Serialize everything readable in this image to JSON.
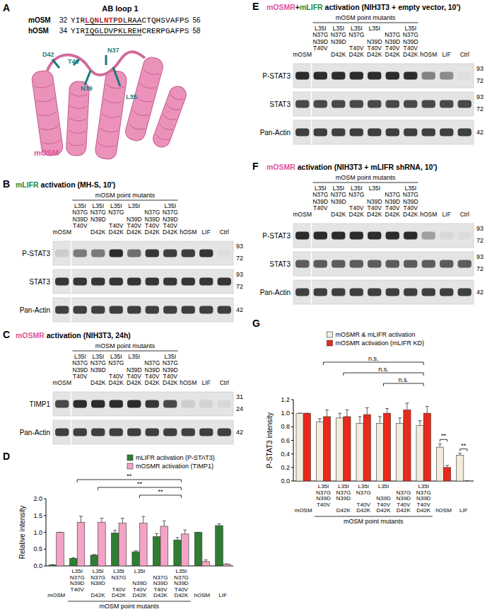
{
  "panels": {
    "A": {
      "label": "A",
      "title": "AB loop 1",
      "sequences": [
        {
          "name": "mOSM",
          "start": 32,
          "end": 56,
          "residues": "YIRLQNLNTPDLRAACTQHSVAFPS",
          "underline": [
            35,
            46
          ],
          "red": [
            35,
            37,
            39,
            40,
            42
          ]
        },
        {
          "name": "hOSM",
          "start": 34,
          "end": 58,
          "residues": "YIRIQGLDVPKLREHCRERPGAFPS",
          "underline": [
            37,
            48
          ]
        }
      ],
      "structure": {
        "name": "mOSM",
        "residues": [
          "L35",
          "N37",
          "N39",
          "T40",
          "D42"
        ]
      }
    },
    "B": {
      "label": "B",
      "title": [
        {
          "text": "mLIFR",
          "color": "#1e8a3a"
        },
        {
          "text": " activation (MH-S, 10')"
        }
      ],
      "group_label": "mOSM point mutants",
      "group_span": [
        1,
        6
      ],
      "lanes": [
        "mOSM",
        "L35I\nN37G\nN39D\nT40V",
        "L35I\nN37G\nN39D\n\nD42K",
        "L35I\nN37G\n\nT40V\nD42K",
        "L35I\n\nN39D\nT40V\nD42K",
        "\nN37G\nN39D\nT40V\nD42K",
        "L35I\nN37G\nN39D\nT40V\nD42K",
        "hOSM",
        "LIF",
        "Ctrl"
      ],
      "rows": [
        {
          "name": "P-STAT3",
          "markers": [
            93,
            72
          ],
          "bands": [
            0.12,
            0.55,
            0.55,
            0.95,
            0.6,
            0.9,
            0.85,
            0.85,
            0.9,
            0.03
          ]
        },
        {
          "name": "STAT3",
          "markers": [
            93,
            72
          ],
          "bands": [
            0.9,
            0.9,
            0.9,
            0.9,
            0.9,
            0.9,
            0.9,
            0.9,
            0.9,
            0.9
          ]
        },
        {
          "name": "Pan-Actin",
          "markers": [
            42
          ],
          "bands": [
            0.85,
            0.85,
            0.85,
            0.85,
            0.85,
            0.85,
            0.85,
            0.85,
            0.85,
            0.85
          ]
        }
      ]
    },
    "C": {
      "label": "C",
      "title": [
        {
          "text": "mOSMR",
          "color": "#e0559a"
        },
        {
          "text": " activation (NIH3T3, 24h)"
        }
      ],
      "group_label": "mOSM point mutants",
      "group_span": [
        1,
        6
      ],
      "lanes": [
        "mOSM",
        "L35I\nN37G\nN39D\nT40V",
        "L35I\nN37G\nN39D\n\nD42K",
        "L35I\nN37G\n\nT40V\nD42K",
        "L35I\n\nN39D\nT40V\nD42K",
        "\nN37G\nN39D\nT40V\nD42K",
        "L35I\nN37G\nN39D\nT40V\nD42K",
        "hOSM",
        "LIF",
        "Ctrl"
      ],
      "rows": [
        {
          "name": "TIMP1",
          "markers": [
            31,
            24
          ],
          "bands": [
            0.8,
            0.95,
            0.95,
            0.95,
            0.95,
            0.9,
            0.8,
            0.12,
            0.08,
            0.06
          ]
        },
        {
          "name": "Pan-Actin",
          "markers": [
            42
          ],
          "bands": [
            0.85,
            0.85,
            0.85,
            0.85,
            0.85,
            0.85,
            0.85,
            0.85,
            0.85,
            0.85
          ]
        }
      ]
    },
    "D": {
      "label": "D"
    },
    "E": {
      "label": "E",
      "title": [
        {
          "text": "mOSMR",
          "color": "#e0559a"
        },
        {
          "text": "+"
        },
        {
          "text": "mLIFR",
          "color": "#1e8a3a"
        },
        {
          "text": " activation (NIH3T3 + empty vector, 10')"
        }
      ],
      "group_label": "mOSM point mutants",
      "group_span": [
        1,
        6
      ],
      "lanes": [
        "mOSM",
        "L35I\nN37G\nN39D\nT40V",
        "L35I\nN37G\nN39D\n\nD42K",
        "L35I\nN37G\n\nT40V\nD42K",
        "L35I\n\nN39D\nT40V\nD42K",
        "\nN37G\nN39D\nT40V\nD42K",
        "L35I\nN37G\nN39D\nT40V\nD42K",
        "hOSM",
        "LIF",
        "Ctrl"
      ],
      "rows": [
        {
          "name": "P-STAT3",
          "markers": [
            93,
            72
          ],
          "bands": [
            0.95,
            0.95,
            0.95,
            0.95,
            0.95,
            0.95,
            0.95,
            0.5,
            0.45,
            0.02
          ]
        },
        {
          "name": "STAT3",
          "markers": [
            93,
            72
          ],
          "bands": [
            0.8,
            0.8,
            0.8,
            0.8,
            0.8,
            0.8,
            0.8,
            0.8,
            0.8,
            0.8
          ]
        },
        {
          "name": "Pan-Actin",
          "markers": [
            42
          ],
          "bands": [
            0.85,
            0.85,
            0.85,
            0.85,
            0.85,
            0.85,
            0.85,
            0.85,
            0.85,
            0.85
          ]
        }
      ]
    },
    "F": {
      "label": "F",
      "title": [
        {
          "text": "mOSMR",
          "color": "#e0559a"
        },
        {
          "text": " activation (NIH3T3 + mLIFR shRNA, 10')"
        }
      ],
      "group_label": "mOSM point mutants",
      "group_span": [
        1,
        6
      ],
      "lanes": [
        "mOSM",
        "L35I\nN37G\nN39D\nT40V",
        "L35I\nN37G\nN39D\n\nD42K",
        "L35I\nN37G\n\nT40V\nD42K",
        "L35I\n\nN39D\nT40V\nD42K",
        "\nN37G\nN39D\nT40V\nD42K",
        "L35I\nN37G\nN39D\nT40V\nD42K",
        "hOSM",
        "LIF",
        "Ctrl"
      ],
      "rows": [
        {
          "name": "P-STAT3",
          "markers": [
            93,
            72
          ],
          "bands": [
            0.95,
            0.95,
            0.95,
            0.95,
            0.95,
            0.95,
            0.95,
            0.35,
            0.06,
            0.04
          ]
        },
        {
          "name": "STAT3",
          "markers": [
            93,
            72
          ],
          "bands": [
            0.7,
            0.7,
            0.7,
            0.7,
            0.7,
            0.7,
            0.7,
            0.7,
            0.7,
            0.7
          ]
        },
        {
          "name": "Pan-Actin",
          "markers": [
            42
          ],
          "bands": [
            0.85,
            0.85,
            0.85,
            0.85,
            0.85,
            0.85,
            0.85,
            0.85,
            0.85,
            0.85
          ]
        }
      ]
    },
    "G": {
      "label": "G"
    }
  },
  "chart_data": [
    {
      "type": "bar",
      "legend": "upper right",
      "ylabel": "Relative intensity",
      "ylim": [
        0,
        2.0
      ],
      "yticks": [
        {
          "value": 0,
          "label": "0.0"
        },
        {
          "value": 0.5,
          "label": "0.5"
        },
        {
          "value": 1,
          "label": "1.0"
        },
        {
          "value": 1.5,
          "label": "1.5"
        },
        {
          "value": 2,
          "label": "2.0"
        }
      ],
      "categories": [
        "mOSM",
        "L35I\nN37G\nN39D\nT40V",
        "L35I\nN37G\nN39D\n\nD42K",
        "L35I\nN37G\n\nT40V\nD42K",
        "L35I\n\nN39D\nT40V\nD42K",
        "\nN37G\nN39D\nT40V\nD42K",
        "L35I\nN37G\nN39D\nT40V\nD42K",
        "hOSM",
        "LIF"
      ],
      "group_label": "mOSM point mutants",
      "group_span": [
        1,
        6
      ],
      "series": [
        {
          "name": "mLIFR activation (P-STAT3)",
          "color": "#2e7d32",
          "values": [
            0.03,
            0.22,
            0.32,
            0.98,
            0.42,
            0.87,
            0.77,
            1.0,
            1.2
          ],
          "errors": [
            0.01,
            0.02,
            0.02,
            0.08,
            0.03,
            0.09,
            0.07,
            0.0,
            0.05
          ]
        },
        {
          "name": "mOSMR activation (TIMP1)",
          "color": "#f4a3c6",
          "values": [
            1.0,
            1.3,
            1.3,
            1.28,
            1.27,
            1.18,
            0.95,
            0.13,
            0.05
          ],
          "errors": [
            0.0,
            0.18,
            0.12,
            0.14,
            0.2,
            0.16,
            0.12,
            0.05,
            0.01
          ]
        }
      ],
      "comparisons": [
        {
          "text": "**",
          "categories": [
            1,
            6
          ]
        },
        {
          "text": "**",
          "categories": [
            2,
            6
          ]
        },
        {
          "text": "**",
          "categories": [
            4,
            6
          ]
        }
      ]
    },
    {
      "type": "bar",
      "legend": "upper center",
      "ylabel": "P-STAT3 intensity",
      "ylim": [
        0,
        1.2
      ],
      "yticks": [
        {
          "value": 0,
          "label": "0.0"
        },
        {
          "value": 0.2,
          "label": "0.2"
        },
        {
          "value": 0.4,
          "label": "0.4"
        },
        {
          "value": 0.6,
          "label": "0.6"
        },
        {
          "value": 0.8,
          "label": "0.8"
        },
        {
          "value": 1,
          "label": "1.0"
        },
        {
          "value": 1.2,
          "label": "1.2"
        }
      ],
      "categories": [
        "mOSM",
        "L35I\nN37G\nN39D\nT40V",
        "L35I\nN37G\nN39D\n\nD42K",
        "L35I\nN37G\n\nT40V\nD42K",
        "L35I\n\nN39D\nT40V\nD42K",
        "\nN37G\nN39D\nT40V\nD42K",
        "L35I\nN37G\nN39D\nT40V\nD42K",
        "hOSM",
        "LIF"
      ],
      "group_label": "mOSM point mutants",
      "group_span": [
        1,
        6
      ],
      "series": [
        {
          "name": "mOSMR & mLIFR activation",
          "color": "#f3ecdc",
          "values": [
            1.0,
            0.87,
            0.93,
            0.85,
            0.85,
            0.85,
            0.82,
            0.5,
            0.38
          ],
          "errors": [
            0.0,
            0.05,
            0.07,
            0.1,
            0.1,
            0.08,
            0.07,
            0.05,
            0.03
          ]
        },
        {
          "name": "mOSMR activation (mLIFR KD)",
          "color": "#e8291c",
          "values": [
            1.0,
            0.95,
            0.95,
            0.98,
            1.0,
            1.05,
            1.0,
            0.2,
            0.0
          ],
          "errors": [
            0.0,
            0.1,
            0.1,
            0.1,
            0.07,
            0.1,
            0.1,
            0.03,
            0.005
          ]
        }
      ],
      "comparisons": [
        {
          "text": "n.s.",
          "categories": [
            1,
            6
          ]
        },
        {
          "text": "n.s.",
          "categories": [
            2,
            6
          ]
        },
        {
          "text": "n.s.",
          "categories": [
            4,
            6
          ]
        },
        {
          "text": "**",
          "categories": [
            7,
            7
          ]
        },
        {
          "text": "**",
          "categories": [
            8,
            8
          ]
        }
      ]
    }
  ]
}
